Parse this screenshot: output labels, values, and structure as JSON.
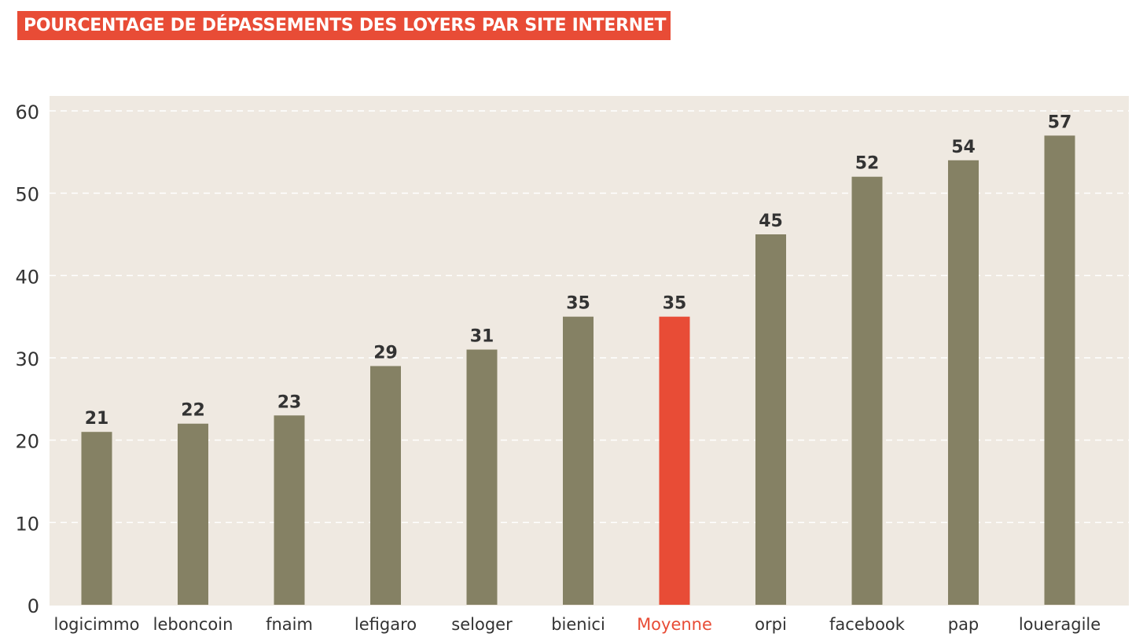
{
  "title": "POURCENTAGE DE DÉPASSEMENTS DES LOYERS PAR SITE INTERNET",
  "colors": {
    "title_bg": "#e84c36",
    "plot_bg": "#efe9e1",
    "bar": "#858164",
    "bar_highlight": "#e84c36",
    "grid": "#ffffff",
    "label_text": "#333333",
    "highlight_text": "#e84c36"
  },
  "chart_data": {
    "type": "bar",
    "title": "POURCENTAGE DE DÉPASSEMENTS DES LOYERS PAR SITE INTERNET",
    "xlabel": "",
    "ylabel": "",
    "categories": [
      "logicimmo",
      "leboncoin",
      "fnaim",
      "lefigaro",
      "seloger",
      "bienici",
      "Moyenne",
      "orpi",
      "facebook",
      "pap",
      "loueragile"
    ],
    "values": [
      21,
      22,
      23,
      29,
      31,
      35,
      35,
      45,
      52,
      54,
      57
    ],
    "data_labels": [
      "21",
      "22",
      "23",
      "29",
      "31",
      "35",
      "35",
      "45",
      "52",
      "54",
      "57"
    ],
    "highlight": "Moyenne",
    "ylim": [
      0,
      60
    ],
    "yticks": [
      0,
      10,
      20,
      30,
      40,
      50,
      60
    ],
    "ytick_labels": [
      "0",
      "10",
      "20",
      "30",
      "40",
      "50",
      "60"
    ],
    "grid": true,
    "grid_style": "dashed-horizontal",
    "legend": "none"
  }
}
